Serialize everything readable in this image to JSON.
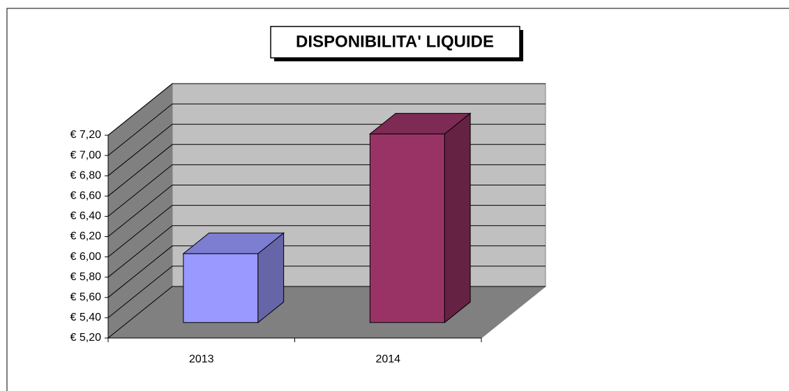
{
  "chart_data": {
    "type": "bar3d",
    "title": "DISPONIBILITA' LIQUIDE",
    "categories": [
      "2013",
      "2014"
    ],
    "values": [
      5.88,
      7.06
    ],
    "colors": [
      "#9999ff",
      "#993366"
    ],
    "ylim": [
      5.2,
      7.2
    ],
    "yticks": [
      {
        "value": 5.2,
        "label": "€ 5,20"
      },
      {
        "value": 5.4,
        "label": "€ 5,40"
      },
      {
        "value": 5.6,
        "label": "€ 5,60"
      },
      {
        "value": 5.8,
        "label": "€ 5,80"
      },
      {
        "value": 6.0,
        "label": "€ 6,00"
      },
      {
        "value": 6.2,
        "label": "€ 6,20"
      },
      {
        "value": 6.4,
        "label": "€ 6,40"
      },
      {
        "value": 6.6,
        "label": "€ 6,60"
      },
      {
        "value": 6.8,
        "label": "€ 6,80"
      },
      {
        "value": 7.0,
        "label": "€ 7,00"
      },
      {
        "value": 7.2,
        "label": "€ 7,20"
      }
    ],
    "grid": true
  }
}
